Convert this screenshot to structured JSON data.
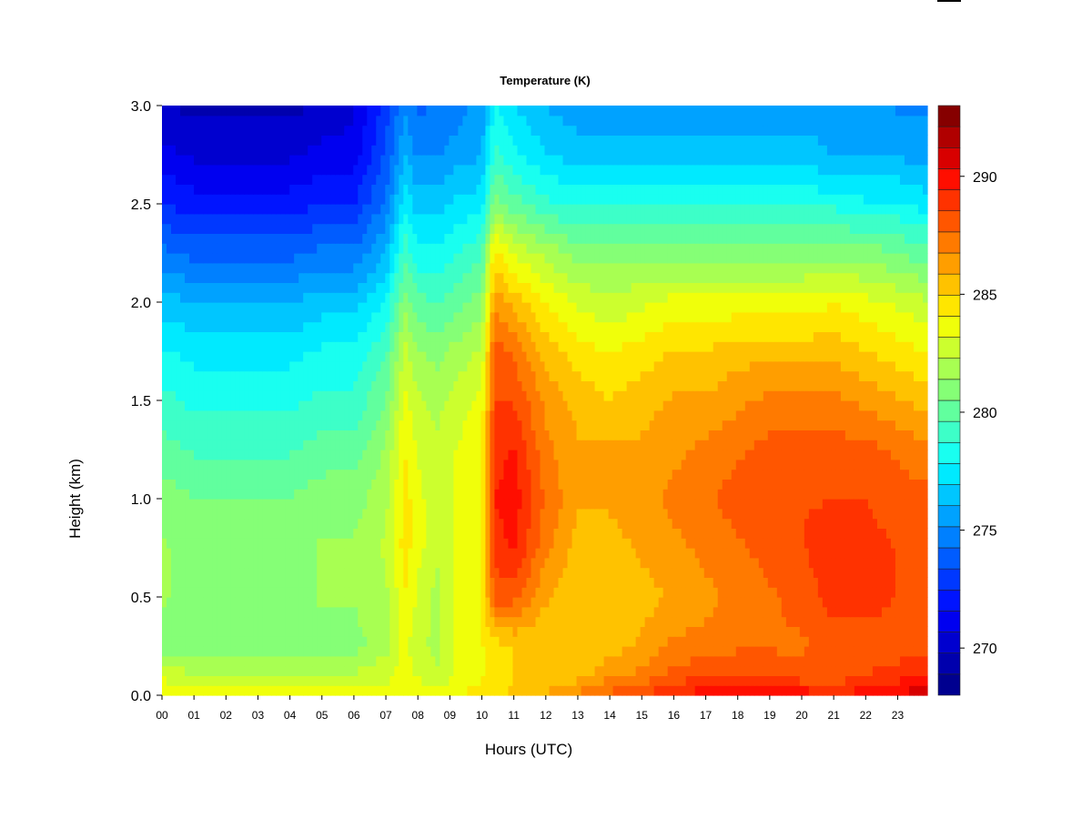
{
  "chart_data": {
    "type": "heatmap",
    "title": "Temperature (K)",
    "xlabel": "Hours (UTC)",
    "ylabel": "Height (km)",
    "x_tick_labels": [
      "00",
      "01",
      "02",
      "03",
      "04",
      "05",
      "06",
      "07",
      "08",
      "09",
      "10",
      "11",
      "12",
      "13",
      "14",
      "15",
      "16",
      "17",
      "18",
      "19",
      "20",
      "21",
      "22",
      "23"
    ],
    "y_tick_labels": [
      "0.0",
      "0.5",
      "1.0",
      "1.5",
      "2.0",
      "2.5",
      "3.0"
    ],
    "y_ticks": [
      0.0,
      0.5,
      1.0,
      1.5,
      2.0,
      2.5,
      3.0
    ],
    "xlim": [
      0,
      24
    ],
    "ylim": [
      0.0,
      3.0
    ],
    "colorbar": {
      "tick_labels": [
        "270",
        "275",
        "280",
        "285",
        "290"
      ],
      "ticks": [
        270,
        275,
        280,
        285,
        290
      ],
      "range": [
        268,
        293
      ],
      "levels": 25,
      "colors": [
        "#00008f",
        "#0000ad",
        "#0000cf",
        "#0000f0",
        "#0014ff",
        "#0038ff",
        "#005cff",
        "#0080ff",
        "#00a2ff",
        "#00c6ff",
        "#00eaff",
        "#19fff0",
        "#3dffc8",
        "#61ff9e",
        "#85ff76",
        "#a8ff52",
        "#ccff2e",
        "#f0ff0a",
        "#ffe600",
        "#ffc200",
        "#ff9e00",
        "#ff7a00",
        "#ff5600",
        "#ff3200",
        "#ff0e00",
        "#d80000",
        "#b00000",
        "#860000"
      ]
    },
    "grid": false,
    "data": {
      "x_hours": [
        0,
        1,
        2,
        3,
        4,
        5,
        6,
        7,
        7.6,
        8,
        8.6,
        9,
        10,
        10.4,
        11,
        12,
        13,
        14,
        15,
        16,
        17,
        18,
        19,
        20,
        21,
        22,
        23,
        23.8
      ],
      "heights_km": [
        0.0,
        0.1,
        0.25,
        0.5,
        0.75,
        1.0,
        1.25,
        1.5,
        1.75,
        2.0,
        2.25,
        2.5,
        2.75,
        3.0
      ],
      "temperature_K": [
        [
          284.0,
          283.5,
          283.5,
          283.5,
          283.5,
          283.5,
          283.5,
          283.5,
          284.0,
          284.0,
          283.5,
          284.0,
          284.5,
          285.0,
          285.0,
          286.0,
          287.0,
          288.0,
          288.5,
          289.5,
          290.0,
          290.0,
          290.5,
          290.0,
          289.5,
          290.0,
          290.5,
          291.0
        ],
        [
          283.0,
          282.5,
          282.5,
          282.5,
          282.5,
          282.5,
          282.5,
          283.0,
          283.5,
          283.0,
          282.5,
          283.0,
          284.0,
          284.5,
          285.0,
          285.0,
          285.5,
          286.5,
          287.0,
          288.0,
          288.5,
          288.5,
          288.5,
          288.0,
          288.0,
          288.5,
          289.0,
          289.5
        ],
        [
          281.0,
          280.5,
          281.0,
          281.0,
          281.0,
          281.0,
          281.0,
          282.0,
          283.5,
          282.5,
          282.0,
          283.0,
          284.0,
          284.5,
          285.0,
          285.0,
          285.0,
          285.5,
          286.0,
          287.0,
          287.0,
          287.5,
          287.5,
          287.5,
          288.0,
          288.0,
          288.0,
          288.0
        ],
        [
          281.5,
          281.0,
          281.0,
          281.0,
          281.0,
          281.5,
          281.5,
          282.0,
          284.0,
          283.0,
          282.0,
          283.0,
          284.0,
          288.0,
          288.0,
          286.0,
          285.0,
          285.0,
          285.5,
          286.0,
          286.5,
          287.0,
          287.5,
          288.0,
          289.0,
          289.0,
          288.5,
          288.0
        ],
        [
          281.5,
          281.0,
          281.0,
          281.0,
          281.0,
          281.5,
          281.5,
          282.5,
          284.5,
          283.5,
          282.5,
          283.0,
          284.0,
          289.0,
          289.5,
          287.0,
          285.5,
          285.5,
          286.0,
          286.5,
          287.0,
          287.5,
          288.0,
          288.5,
          289.0,
          289.0,
          288.5,
          288.0
        ],
        [
          281.0,
          280.5,
          280.5,
          280.5,
          280.5,
          281.0,
          281.0,
          282.0,
          284.5,
          283.5,
          282.5,
          283.0,
          284.0,
          289.5,
          290.0,
          287.5,
          286.0,
          286.0,
          286.5,
          287.0,
          287.5,
          288.0,
          288.5,
          288.5,
          288.5,
          288.5,
          288.0,
          288.0
        ],
        [
          280.0,
          279.5,
          279.5,
          279.5,
          279.5,
          280.0,
          280.0,
          281.5,
          284.0,
          283.0,
          282.5,
          283.0,
          284.0,
          289.0,
          289.5,
          287.0,
          286.0,
          286.0,
          286.0,
          286.5,
          287.0,
          287.5,
          288.0,
          288.0,
          288.0,
          288.0,
          287.5,
          287.0
        ],
        [
          279.0,
          278.5,
          278.5,
          278.5,
          278.5,
          279.0,
          279.0,
          280.5,
          283.5,
          282.5,
          282.0,
          282.5,
          283.5,
          288.5,
          288.5,
          286.5,
          285.5,
          285.0,
          285.5,
          286.0,
          286.0,
          286.5,
          287.0,
          287.0,
          287.0,
          286.5,
          286.0,
          285.5
        ],
        [
          278.0,
          277.5,
          277.5,
          277.5,
          277.5,
          278.0,
          278.0,
          279.5,
          282.5,
          281.5,
          281.0,
          281.5,
          282.5,
          288.0,
          287.5,
          285.5,
          284.5,
          284.0,
          284.5,
          285.0,
          285.0,
          285.5,
          285.5,
          285.5,
          285.5,
          285.0,
          284.5,
          284.0
        ],
        [
          276.5,
          276.0,
          276.0,
          276.0,
          276.0,
          276.5,
          276.5,
          278.0,
          281.0,
          280.0,
          279.5,
          280.0,
          281.0,
          286.5,
          285.5,
          284.0,
          283.0,
          282.5,
          283.0,
          283.5,
          283.5,
          283.5,
          283.5,
          283.5,
          284.0,
          283.5,
          283.0,
          282.5
        ],
        [
          274.5,
          274.0,
          274.0,
          274.0,
          274.0,
          274.5,
          274.5,
          276.0,
          279.5,
          278.0,
          278.0,
          278.5,
          279.5,
          284.5,
          283.0,
          282.0,
          281.0,
          281.0,
          281.0,
          281.0,
          281.0,
          281.0,
          281.0,
          281.0,
          281.0,
          281.0,
          280.5,
          280.0
        ],
        [
          272.5,
          272.0,
          272.0,
          272.0,
          272.0,
          272.5,
          272.5,
          274.5,
          277.5,
          276.5,
          276.5,
          277.0,
          277.5,
          281.0,
          280.0,
          279.0,
          278.5,
          278.5,
          278.5,
          278.5,
          278.5,
          278.5,
          278.5,
          278.5,
          278.5,
          278.0,
          278.0,
          277.5
        ],
        [
          271.0,
          270.5,
          270.5,
          270.5,
          270.5,
          271.0,
          271.0,
          273.5,
          276.0,
          275.0,
          275.0,
          275.5,
          276.0,
          279.0,
          278.0,
          277.0,
          276.5,
          276.5,
          276.5,
          276.5,
          276.5,
          276.5,
          276.5,
          276.5,
          276.0,
          276.0,
          276.0,
          275.5
        ],
        [
          270.0,
          269.5,
          269.5,
          269.5,
          269.5,
          270.0,
          270.5,
          273.0,
          275.0,
          274.0,
          274.5,
          274.5,
          275.5,
          278.0,
          277.0,
          276.0,
          275.5,
          275.5,
          275.5,
          275.5,
          275.5,
          275.5,
          275.5,
          275.5,
          275.5,
          275.5,
          275.0,
          275.0
        ]
      ]
    }
  }
}
